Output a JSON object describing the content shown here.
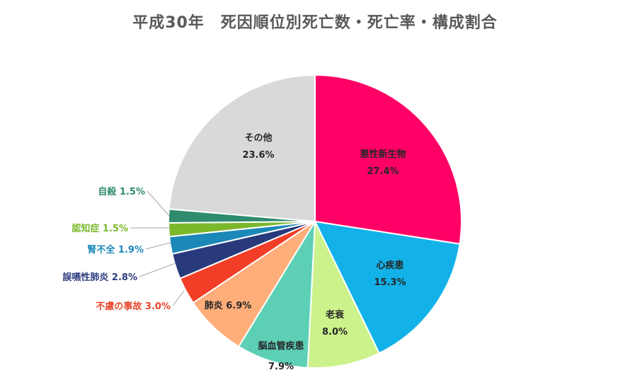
{
  "chart_data": {
    "type": "pie",
    "title": "平成30年　死因順位別死亡数・死亡率・構成割合",
    "slices": [
      {
        "label": "悪性新生物",
        "value": 27.4,
        "value_text": "27.4%",
        "color": "#ff0066",
        "label_color": "#262626"
      },
      {
        "label": "心疾患",
        "value": 15.3,
        "value_text": "15.3%",
        "color": "#12b2e8",
        "label_color": "#262626"
      },
      {
        "label": "老衰",
        "value": 8.0,
        "value_text": "8.0%",
        "color": "#ccf28c",
        "label_color": "#262626"
      },
      {
        "label": "脳血管疾患",
        "value": 7.9,
        "value_text": "7.9%",
        "color": "#5ccfb5",
        "label_color": "#262626"
      },
      {
        "label": "肺炎",
        "value": 6.9,
        "value_text": "6.9%",
        "color": "#ffae7a",
        "label_color": "#262626"
      },
      {
        "label": "不慮の事故",
        "value": 3.0,
        "value_text": "3.0%",
        "color": "#f23e26",
        "label_color": "#e8452b"
      },
      {
        "label": "誤嚥性肺炎",
        "value": 2.8,
        "value_text": "2.8%",
        "color": "#283a7c",
        "label_color": "#2e3e80"
      },
      {
        "label": "腎不全",
        "value": 1.9,
        "value_text": "1.9%",
        "color": "#1b88b8",
        "label_color": "#1b88b8"
      },
      {
        "label": "認知症",
        "value": 1.5,
        "value_text": "1.5%",
        "color": "#7bb82c",
        "label_color": "#7bb82c"
      },
      {
        "label": "自殺",
        "value": 1.5,
        "value_text": "1.5%",
        "color": "#2e8b6e",
        "label_color": "#2e8b6e"
      },
      {
        "label": "その他",
        "value": 23.6,
        "value_text": "23.6%",
        "color": "#d9d9d9",
        "label_color": "#262626"
      }
    ],
    "legend": "none"
  }
}
